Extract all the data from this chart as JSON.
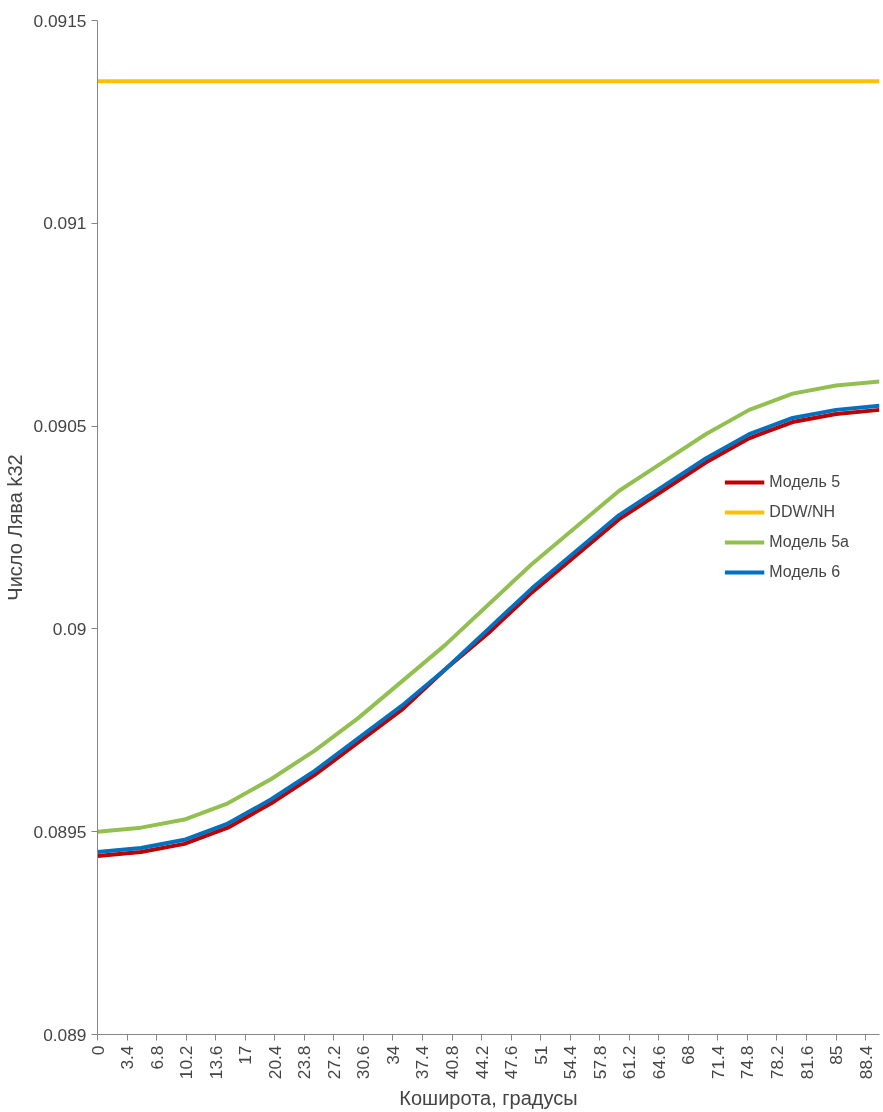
{
  "chart_data": {
    "type": "line",
    "xlabel": "Коширота, градусы",
    "ylabel": "Число Лява k32",
    "x": [
      0,
      5,
      10,
      15,
      20,
      25,
      30,
      35,
      40,
      45,
      50,
      55,
      60,
      65,
      70,
      75,
      80,
      85,
      90
    ],
    "series": [
      {
        "name": "Модель 5",
        "color": "#c00000",
        "values": [
          0.08944,
          0.08945,
          0.08947,
          0.08951,
          0.08957,
          0.08964,
          0.08972,
          0.0898,
          0.0899,
          0.08999,
          0.09009,
          0.09018,
          0.09027,
          0.09034,
          0.09041,
          0.09047,
          0.09051,
          0.09053,
          0.09054
        ]
      },
      {
        "name": "DDW/NH",
        "color": "#ffc000",
        "values": [
          0.09135,
          0.09135,
          0.09135,
          0.09135,
          0.09135,
          0.09135,
          0.09135,
          0.09135,
          0.09135,
          0.09135,
          0.09135,
          0.09135,
          0.09135,
          0.09135,
          0.09135,
          0.09135,
          0.09135,
          0.09135,
          0.09135
        ]
      },
      {
        "name": "Модель 5a",
        "color": "#92c050",
        "values": [
          0.0895,
          0.08951,
          0.08953,
          0.08957,
          0.08963,
          0.0897,
          0.08978,
          0.08987,
          0.08996,
          0.09006,
          0.09016,
          0.09025,
          0.09034,
          0.09041,
          0.09048,
          0.09054,
          0.09058,
          0.0906,
          0.09061
        ]
      },
      {
        "name": "Модель 6",
        "color": "#0070c0",
        "values": [
          0.08945,
          0.08946,
          0.08948,
          0.08952,
          0.08958,
          0.08965,
          0.08973,
          0.08981,
          0.0899,
          0.09,
          0.0901,
          0.09019,
          0.09028,
          0.09035,
          0.09042,
          0.09048,
          0.09052,
          0.09054,
          0.09055
        ]
      }
    ],
    "xlim": [
      0,
      90
    ],
    "xticks": [
      0,
      3.4,
      6.8,
      10.2,
      13.6,
      17,
      20.4,
      23.8,
      27.2,
      30.6,
      34,
      37.4,
      40.8,
      44.2,
      47.6,
      51,
      54.4,
      57.8,
      61.2,
      64.6,
      68,
      71.4,
      74.8,
      78.2,
      81.6,
      85,
      88.4
    ],
    "ylim": [
      0.089,
      0.0915
    ],
    "yticks": [
      0.089,
      0.0895,
      0.09,
      0.0905,
      0.091,
      0.0915
    ],
    "grid": false,
    "legend": "right",
    "marker": "none",
    "line_style": "solid"
  }
}
